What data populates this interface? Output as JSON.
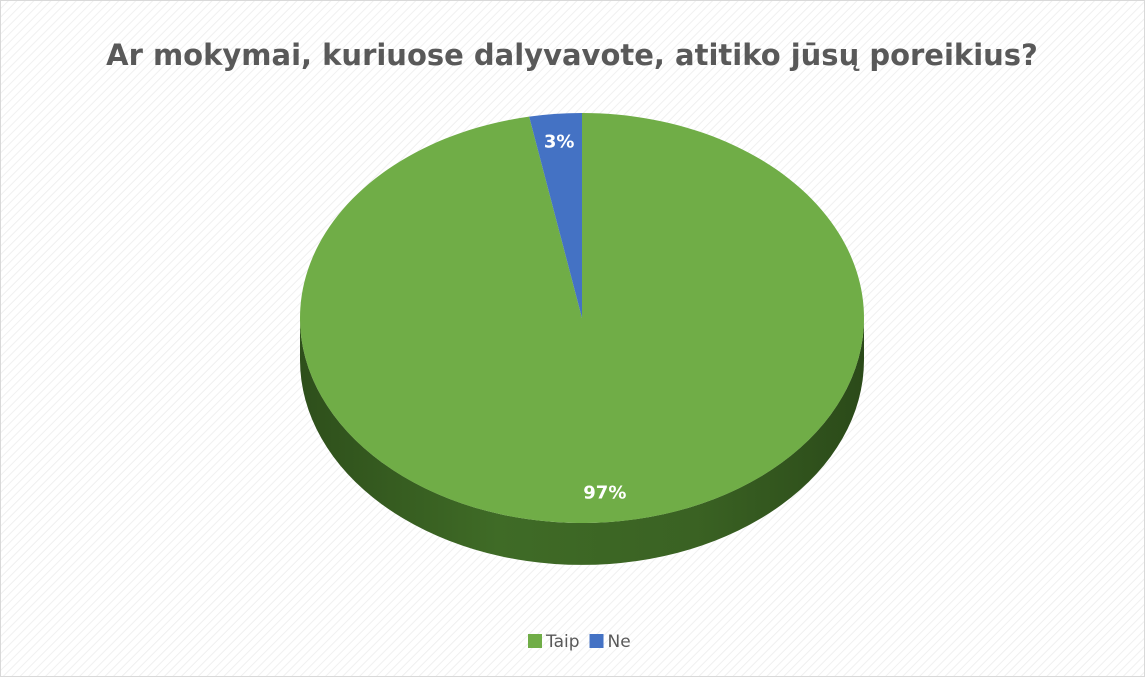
{
  "chart_data": {
    "type": "pie",
    "title": "Ar mokymai, kuriuose dalyvavote, atitiko jūsų poreikius?",
    "categories": [
      "Taip",
      "Ne"
    ],
    "values": [
      97,
      3
    ],
    "value_labels": [
      "97%",
      "3%"
    ],
    "colors": [
      "#70ad47",
      "#4472c4"
    ],
    "legend": "bottom"
  }
}
